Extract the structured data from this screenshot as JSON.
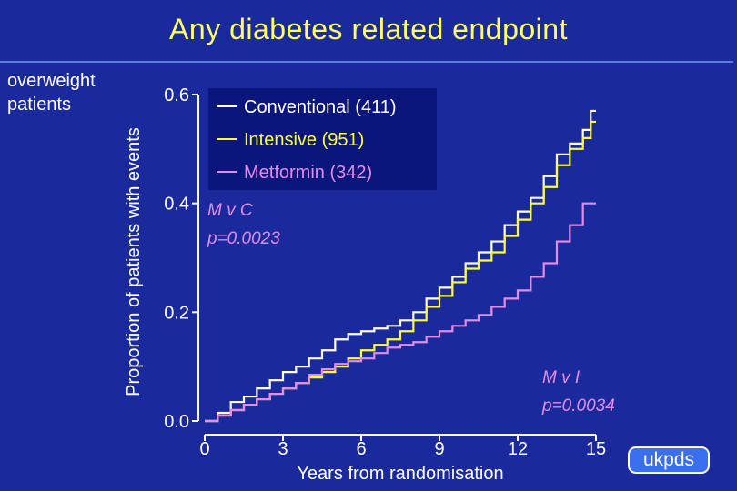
{
  "header": {
    "title": "Any diabetes related endpoint",
    "subgroup_line1": "overweight",
    "subgroup_line2": "patients"
  },
  "annotations": {
    "mvc_label": "M v C",
    "mvc_p": "p=0.0023",
    "mvi_label": "M v I",
    "mvi_p": "p=0.0034"
  },
  "logo": {
    "text": "ukpds"
  },
  "colors": {
    "background": "#1a2a9c",
    "conventional": "#ffffff",
    "intensive": "#ffff33",
    "metformin": "#e58be8",
    "title": "#ffff66",
    "legend_box": "#0b167c"
  },
  "chart_data": {
    "type": "line",
    "title": "Any diabetes related endpoint",
    "xlabel": "Years from randomisation",
    "ylabel": "Proportion of patients with events",
    "xlim": [
      0,
      15
    ],
    "ylim": [
      0,
      0.6
    ],
    "xticks": [
      "0",
      "3",
      "6",
      "9",
      "12",
      "15"
    ],
    "yticks": [
      "0.0",
      "0.2",
      "0.4",
      "0.6"
    ],
    "legend_position": "top-left",
    "series": [
      {
        "name": "Conventional (411)",
        "color": "#ffffff",
        "x": [
          0,
          0.5,
          1,
          1.5,
          2,
          2.5,
          3,
          3.5,
          4,
          4.5,
          5,
          5.5,
          6,
          6.5,
          7,
          7.5,
          8,
          8.5,
          9,
          9.5,
          10,
          10.5,
          11,
          11.5,
          12,
          12.5,
          13,
          13.5,
          14,
          14.5,
          14.8,
          15
        ],
        "y": [
          0,
          0.015,
          0.035,
          0.045,
          0.06,
          0.075,
          0.09,
          0.1,
          0.115,
          0.13,
          0.15,
          0.16,
          0.165,
          0.17,
          0.175,
          0.185,
          0.2,
          0.225,
          0.245,
          0.265,
          0.29,
          0.31,
          0.33,
          0.36,
          0.385,
          0.41,
          0.45,
          0.49,
          0.51,
          0.535,
          0.57,
          0.57
        ]
      },
      {
        "name": "Intensive (951)",
        "color": "#ffff33",
        "x": [
          0,
          0.5,
          1,
          1.5,
          2,
          2.5,
          3,
          3.5,
          4,
          4.5,
          5,
          5.5,
          6,
          6.5,
          7,
          7.5,
          8,
          8.5,
          9,
          9.5,
          10,
          10.5,
          11,
          11.5,
          12,
          12.5,
          13,
          13.5,
          14,
          14.5,
          14.8,
          15
        ],
        "y": [
          0,
          0.01,
          0.02,
          0.03,
          0.04,
          0.05,
          0.06,
          0.07,
          0.08,
          0.09,
          0.1,
          0.115,
          0.13,
          0.14,
          0.15,
          0.165,
          0.185,
          0.21,
          0.23,
          0.255,
          0.28,
          0.295,
          0.31,
          0.34,
          0.37,
          0.4,
          0.43,
          0.47,
          0.5,
          0.52,
          0.55,
          0.55
        ]
      },
      {
        "name": "Metformin (342)",
        "color": "#e58be8",
        "x": [
          0,
          0.5,
          1,
          1.5,
          2,
          2.5,
          3,
          3.5,
          4,
          4.5,
          5,
          5.5,
          6,
          6.5,
          7,
          7.5,
          8,
          8.5,
          9,
          9.5,
          10,
          10.5,
          11,
          11.5,
          12,
          12.5,
          13,
          13.5,
          14,
          14.5,
          15
        ],
        "y": [
          0,
          0.01,
          0.02,
          0.03,
          0.04,
          0.05,
          0.06,
          0.07,
          0.085,
          0.095,
          0.105,
          0.11,
          0.115,
          0.125,
          0.135,
          0.14,
          0.145,
          0.155,
          0.165,
          0.175,
          0.185,
          0.195,
          0.21,
          0.225,
          0.24,
          0.265,
          0.29,
          0.33,
          0.36,
          0.4,
          0.4
        ]
      }
    ]
  }
}
